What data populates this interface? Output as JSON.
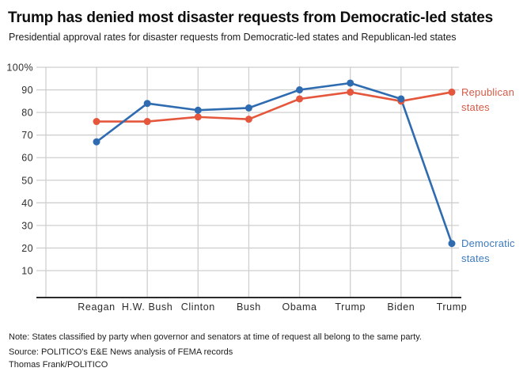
{
  "header": {
    "title": "Trump has denied most disaster requests from Democratic-led states",
    "subtitle": "Presidential approval rates for disaster requests from Democratic-led states and Republican-led states"
  },
  "chart_data": {
    "type": "line",
    "title": "Trump has denied most disaster requests from Democratic-led states",
    "subtitle": "Presidential approval rates for disaster requests from Democratic-led states and Republican-led states",
    "categories": [
      "Reagan",
      "H.W. Bush",
      "Clinton",
      "Bush",
      "Obama",
      "Trump",
      "Biden",
      "Trump"
    ],
    "series": [
      {
        "name": "Republican states",
        "label_lines": [
          "Republican",
          "states"
        ],
        "color": "#E4573D",
        "label_color": "#D45B49",
        "values": [
          76,
          76,
          78,
          77,
          86,
          89,
          85,
          89
        ]
      },
      {
        "name": "Democratic states",
        "label_lines": [
          "Democratic",
          "states"
        ],
        "color": "#2E6BB0",
        "label_color": "#3D7BBE",
        "values": [
          67,
          84,
          81,
          82,
          90,
          93,
          86,
          22
        ]
      }
    ],
    "xlabel": "",
    "ylabel": "",
    "ylim": [
      0,
      100
    ],
    "y_ticks": [
      100,
      90,
      80,
      70,
      60,
      50,
      40,
      30,
      20,
      10
    ],
    "y_tick_top_label": "100%",
    "grid": true,
    "gridline_color": "#cfcfcf",
    "axis_color": "#2b2b2b",
    "legend_position": "right-of-last-point",
    "marker": "circle"
  },
  "footer": {
    "note": "Note: States classified by party when governor and senators at time of request all belong to the same party.",
    "source": "Source: POLITICO's E&E News analysis of FEMA records",
    "byline": "Thomas Frank/POLITICO"
  }
}
